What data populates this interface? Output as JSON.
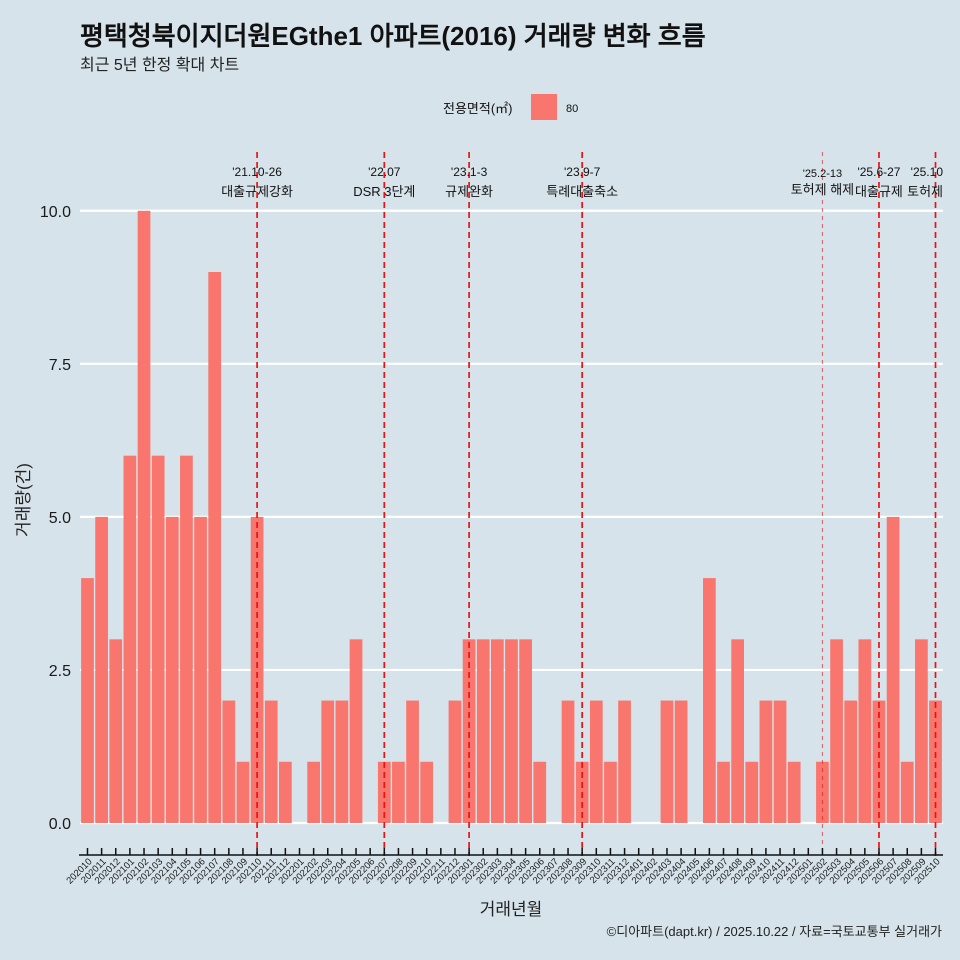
{
  "chart_data": {
    "type": "bar",
    "title": "평택청북이지더원EGthe1 아파트(2016) 거래량 변화 흐름",
    "subtitle": "최근 5년 한정 확대 차트",
    "xlabel": "거래년월",
    "ylabel": "거래량(건)",
    "categories": [
      "202010",
      "202011",
      "202012",
      "202101",
      "202102",
      "202103",
      "202104",
      "202105",
      "202106",
      "202107",
      "202108",
      "202109",
      "202110",
      "202111",
      "202112",
      "202201",
      "202202",
      "202203",
      "202204",
      "202205",
      "202206",
      "202207",
      "202208",
      "202209",
      "202210",
      "202211",
      "202212",
      "202301",
      "202302",
      "202303",
      "202304",
      "202305",
      "202306",
      "202307",
      "202308",
      "202309",
      "202310",
      "202311",
      "202312",
      "202401",
      "202402",
      "202403",
      "202404",
      "202405",
      "202406",
      "202407",
      "202408",
      "202409",
      "202410",
      "202411",
      "202412",
      "202501",
      "202502",
      "202503",
      "202504",
      "202505",
      "202506",
      "202507",
      "202508",
      "202509",
      "202510"
    ],
    "series": [
      {
        "name": "80",
        "values": [
          4,
          5,
          3,
          6,
          10,
          6,
          5,
          6,
          5,
          9,
          2,
          1,
          5,
          2,
          1,
          0,
          1,
          2,
          2,
          3,
          0,
          1,
          1,
          2,
          1,
          0,
          2,
          3,
          3,
          3,
          3,
          3,
          1,
          0,
          2,
          1,
          2,
          1,
          2,
          0,
          0,
          2,
          2,
          0,
          4,
          1,
          3,
          1,
          2,
          2,
          1,
          0,
          1,
          3,
          2,
          3,
          2,
          5,
          1,
          3,
          2
        ]
      }
    ],
    "legend": {
      "title": "전용면적(㎡)",
      "position": "top",
      "entries": [
        "80"
      ]
    },
    "yticks": [
      0,
      2.5,
      5,
      7.5,
      10
    ],
    "ytick_labels": [
      "0.0",
      "2.5",
      "5.0",
      "7.5",
      "10.0"
    ],
    "ylim": [
      -0.49,
      10.96
    ],
    "grid": true,
    "annotations": [
      {
        "x": "202110",
        "date": "'21.10-26",
        "label": "대출규제강화",
        "style": "major"
      },
      {
        "x": "202207",
        "date": "'22.07",
        "label": "DSR 3단계",
        "style": "major"
      },
      {
        "x": "202301",
        "date": "'23.1-3",
        "label": "규제완화",
        "style": "major"
      },
      {
        "x": "202309",
        "date": "'23.9-7",
        "label": "특례대출축소",
        "style": "major"
      },
      {
        "x": "202502",
        "date": "'25.2-13",
        "label": "토허제 해제",
        "style": "minor"
      },
      {
        "x": "202506",
        "date": "'25.6-27",
        "label": "대출규제",
        "style": "major"
      },
      {
        "x": "202510",
        "date": "'25.10",
        "label": "토허제",
        "style": "major"
      }
    ],
    "caption": "©디아파트(dapt.kr) / 2025.10.22 / 자료=국토교통부 실거래가"
  },
  "colors": {
    "background": "#D6E3EA",
    "bar": "#F8766D",
    "event_line": "#EE1111",
    "grid": "#FFFFFF",
    "axis": "#111111"
  }
}
